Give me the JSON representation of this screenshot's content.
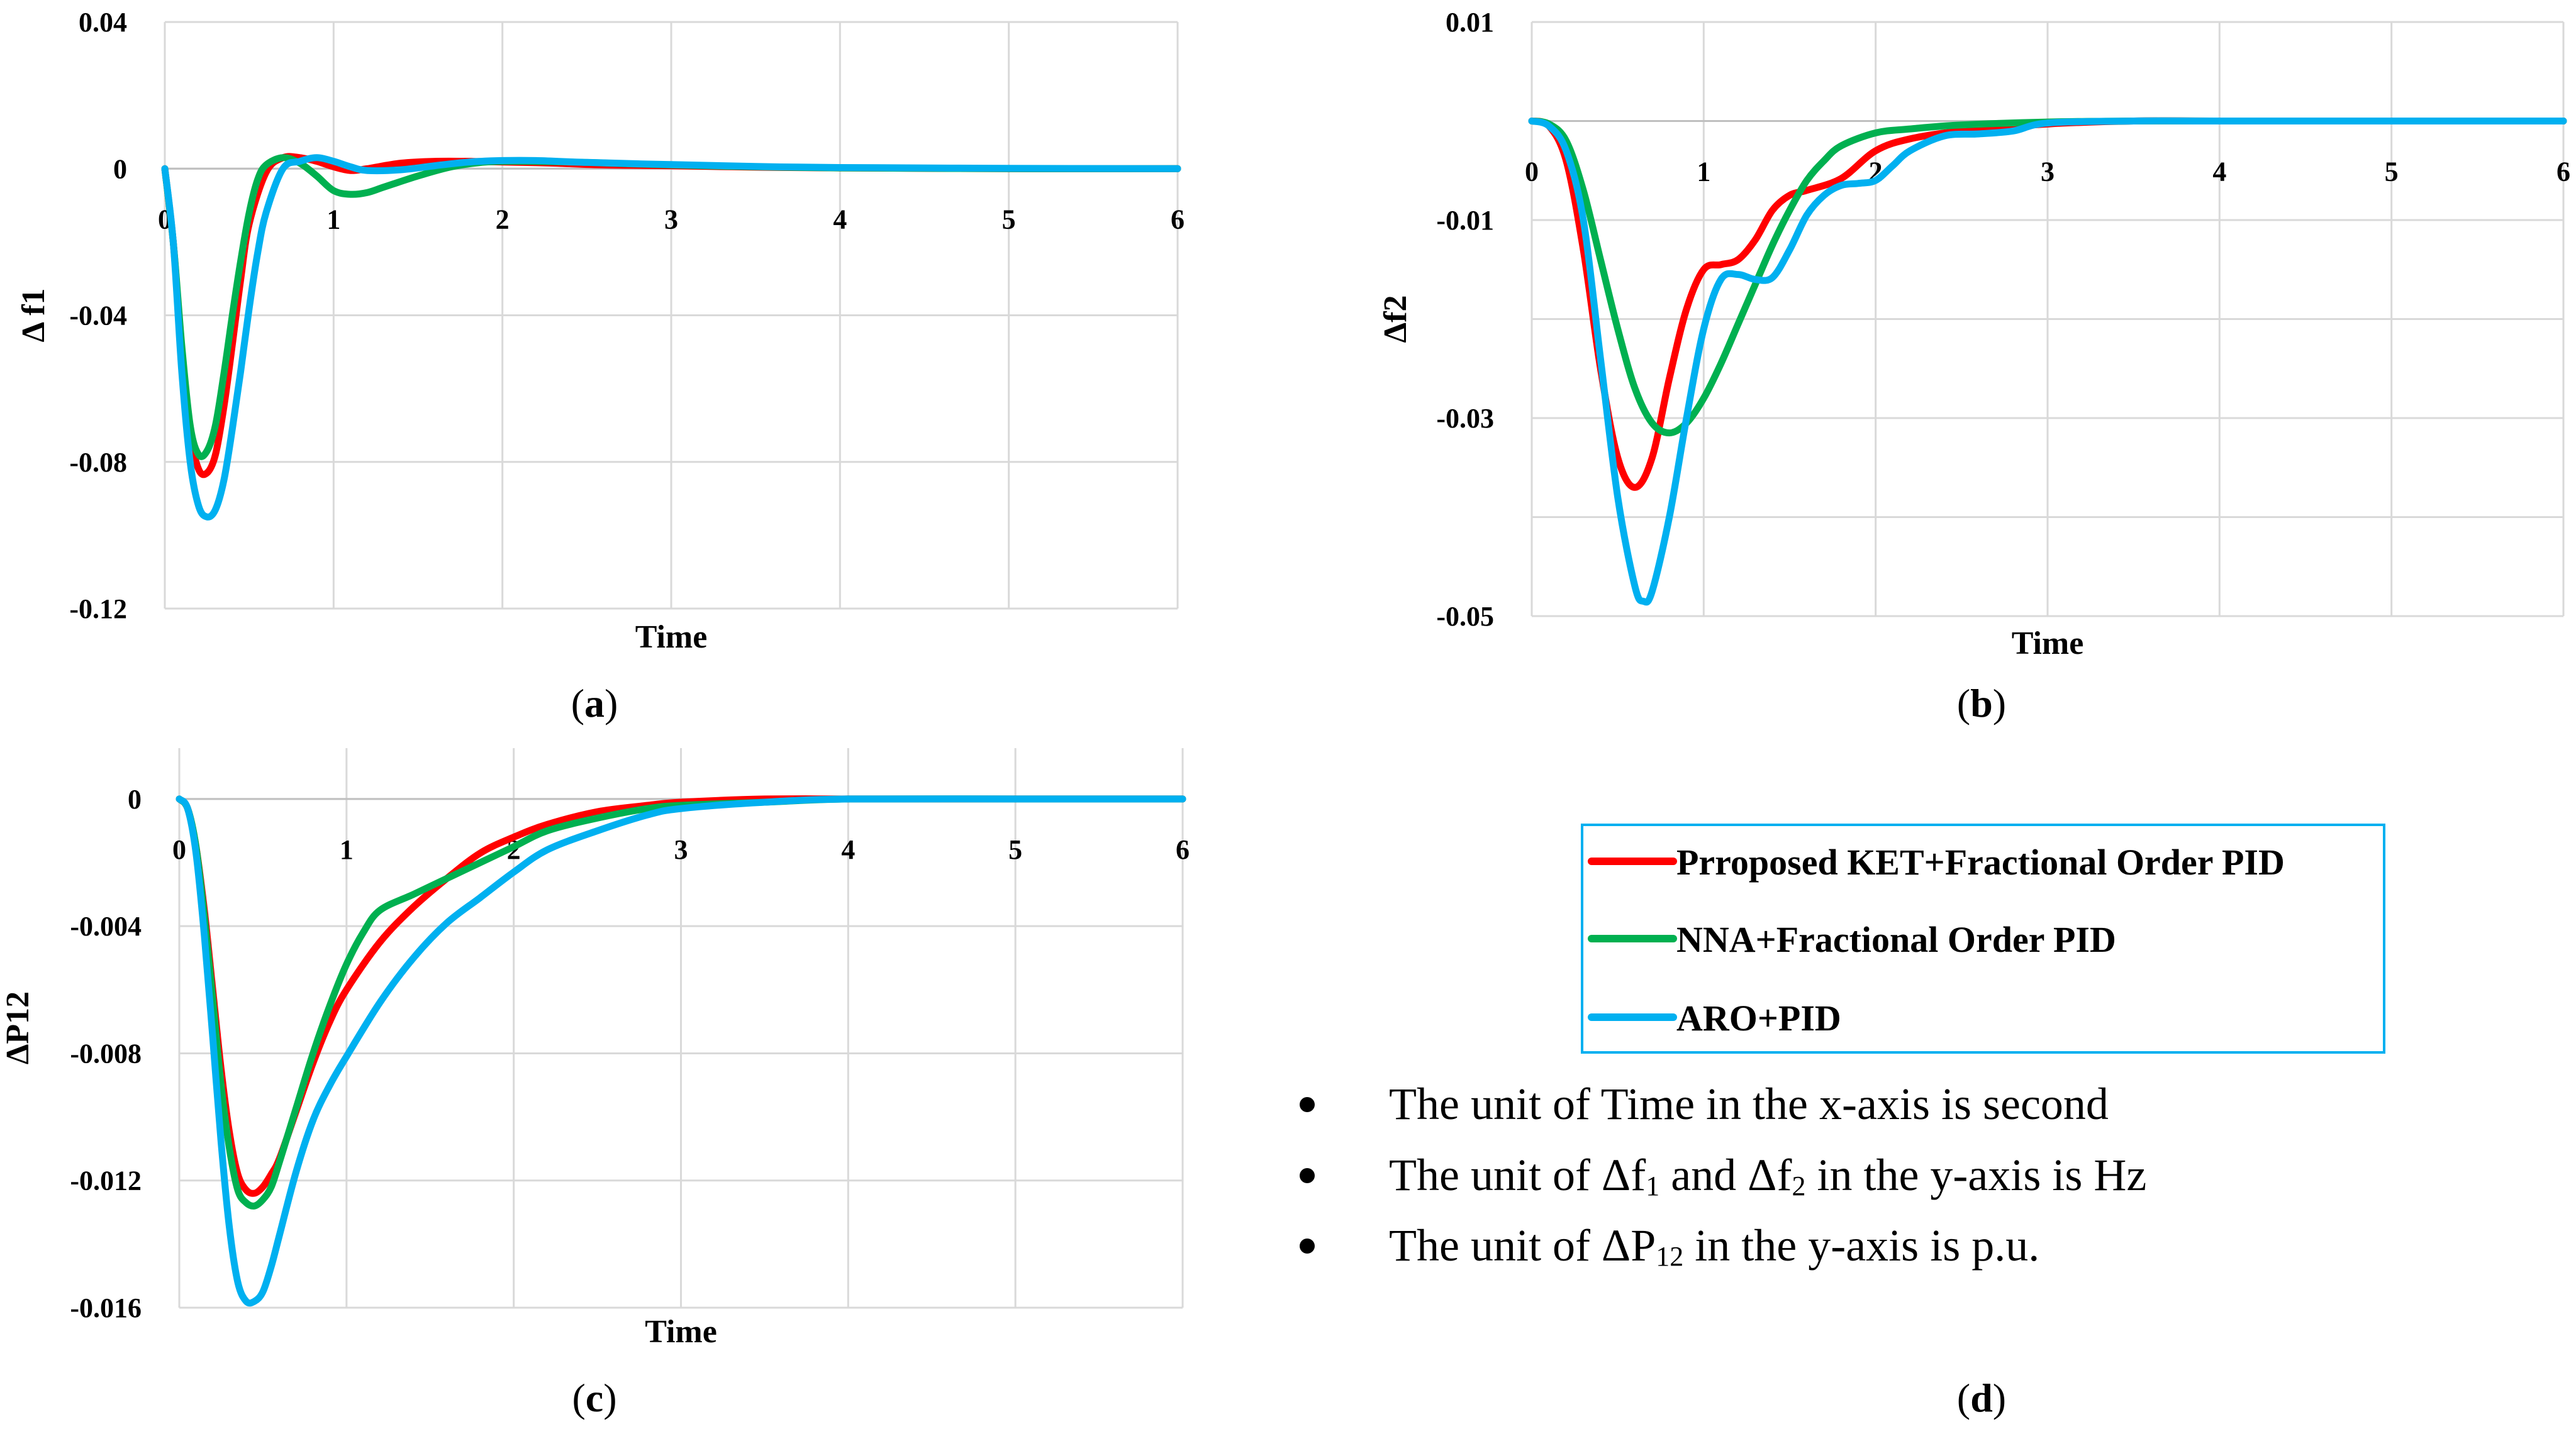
{
  "chart_data": [
    {
      "type": "line",
      "panel": "a",
      "xlabel": "Time",
      "ylabel": "Δ f1",
      "xlim": [
        0,
        6
      ],
      "ylim": [
        -0.12,
        0.04
      ],
      "xticks": [
        "0",
        "1",
        "2",
        "3",
        "4",
        "5",
        "6"
      ],
      "yticks": [
        "0.04",
        "0",
        "-0.04",
        "-0.08",
        "-0.12"
      ],
      "series": [
        {
          "name": "Prroposed KET+Fractional Order PID",
          "color": "#ff0000",
          "x": [
            0,
            0.05,
            0.1,
            0.15,
            0.2,
            0.25,
            0.3,
            0.35,
            0.4,
            0.45,
            0.5,
            0.6,
            0.7,
            0.8,
            0.9,
            1.0,
            1.1,
            1.2,
            1.4,
            1.6,
            1.8,
            2.0,
            2.3,
            2.6,
            3.0,
            3.5,
            4.0,
            5.0,
            6.0
          ],
          "y": [
            0,
            -0.02,
            -0.05,
            -0.072,
            -0.082,
            -0.083,
            -0.078,
            -0.065,
            -0.048,
            -0.03,
            -0.015,
            -0.001,
            0.003,
            0.003,
            0.002,
            0.0005,
            -0.0005,
            0,
            0.0015,
            0.002,
            0.002,
            0.0018,
            0.0015,
            0.001,
            0.0008,
            0.0004,
            0.0002,
            0,
            0
          ]
        },
        {
          "name": "NNA+Fractional Order PID",
          "color": "#00b050",
          "x": [
            0,
            0.05,
            0.1,
            0.15,
            0.2,
            0.25,
            0.3,
            0.35,
            0.4,
            0.45,
            0.5,
            0.55,
            0.6,
            0.7,
            0.8,
            0.9,
            1.0,
            1.1,
            1.2,
            1.3,
            1.5,
            1.7,
            1.9,
            2.1,
            2.4,
            2.7,
            3.0,
            3.5,
            4.0,
            5.0,
            6.0
          ],
          "y": [
            0,
            -0.02,
            -0.048,
            -0.07,
            -0.078,
            -0.077,
            -0.07,
            -0.056,
            -0.04,
            -0.025,
            -0.012,
            -0.003,
            0.001,
            0.003,
            0.0015,
            -0.002,
            -0.006,
            -0.007,
            -0.0065,
            -0.005,
            -0.002,
            0.0005,
            0.0018,
            0.002,
            0.0018,
            0.0014,
            0.001,
            0.0005,
            0.0002,
            0,
            0
          ]
        },
        {
          "name": "ARO+PID",
          "color": "#00b0f0",
          "x": [
            0,
            0.05,
            0.1,
            0.15,
            0.2,
            0.25,
            0.3,
            0.35,
            0.4,
            0.45,
            0.5,
            0.55,
            0.6,
            0.7,
            0.8,
            0.9,
            1.0,
            1.1,
            1.2,
            1.4,
            1.6,
            1.8,
            2.0,
            2.2,
            2.5,
            3.0,
            3.5,
            4.0,
            5.0,
            6.0
          ],
          "y": [
            0,
            -0.02,
            -0.055,
            -0.08,
            -0.092,
            -0.095,
            -0.093,
            -0.085,
            -0.071,
            -0.055,
            -0.038,
            -0.023,
            -0.012,
            0,
            0.002,
            0.003,
            0.002,
            0.0005,
            -0.0005,
            -0.0003,
            0.0008,
            0.0018,
            0.0022,
            0.0022,
            0.0017,
            0.0011,
            0.0006,
            0.0003,
            0.0001,
            0
          ]
        }
      ]
    },
    {
      "type": "line",
      "panel": "b",
      "xlabel": "Time",
      "ylabel": "Δf2",
      "xlim": [
        0,
        6
      ],
      "ylim": [
        -0.05,
        0.01
      ],
      "xticks": [
        "0",
        "1",
        "2",
        "3",
        "4",
        "5",
        "6"
      ],
      "yticks": [
        "0.01",
        "-0.01",
        "-0.03",
        "-0.05"
      ],
      "series": [
        {
          "name": "Prroposed KET+Fractional Order PID",
          "color": "#ff0000",
          "x": [
            0,
            0.1,
            0.2,
            0.3,
            0.4,
            0.5,
            0.6,
            0.7,
            0.8,
            0.9,
            1.0,
            1.1,
            1.2,
            1.3,
            1.4,
            1.5,
            1.6,
            1.8,
            2.0,
            2.2,
            2.5,
            3.0,
            3.5,
            4.0,
            5.0,
            6.0
          ],
          "y": [
            0,
            -0.0005,
            -0.004,
            -0.013,
            -0.025,
            -0.034,
            -0.037,
            -0.034,
            -0.026,
            -0.019,
            -0.015,
            -0.0145,
            -0.014,
            -0.012,
            -0.009,
            -0.0075,
            -0.007,
            -0.0058,
            -0.003,
            -0.0018,
            -0.001,
            -0.0003,
            0,
            0,
            0,
            0
          ]
        },
        {
          "name": "NNA+Fractional Order PID",
          "color": "#00b050",
          "x": [
            0,
            0.1,
            0.2,
            0.3,
            0.4,
            0.5,
            0.6,
            0.7,
            0.8,
            0.9,
            1.0,
            1.1,
            1.2,
            1.3,
            1.4,
            1.5,
            1.6,
            1.7,
            1.8,
            2.0,
            2.2,
            2.5,
            3.0,
            3.5,
            4.0,
            5.0,
            6.0
          ],
          "y": [
            0,
            -0.0003,
            -0.002,
            -0.007,
            -0.014,
            -0.021,
            -0.027,
            -0.0305,
            -0.0315,
            -0.0305,
            -0.028,
            -0.0245,
            -0.0205,
            -0.0165,
            -0.0125,
            -0.009,
            -0.006,
            -0.004,
            -0.0025,
            -0.0012,
            -0.0008,
            -0.0004,
            -0.0001,
            0,
            0,
            0,
            0
          ]
        },
        {
          "name": "ARO+PID",
          "color": "#00b0f0",
          "x": [
            0,
            0.1,
            0.2,
            0.3,
            0.4,
            0.5,
            0.6,
            0.65,
            0.7,
            0.8,
            0.9,
            1.0,
            1.1,
            1.2,
            1.3,
            1.4,
            1.5,
            1.6,
            1.7,
            1.8,
            1.9,
            2.0,
            2.1,
            2.2,
            2.4,
            2.6,
            2.8,
            3.0,
            3.5,
            4.0,
            5.0,
            6.0
          ],
          "y": [
            0,
            -0.0005,
            -0.003,
            -0.01,
            -0.024,
            -0.038,
            -0.047,
            -0.0485,
            -0.0475,
            -0.04,
            -0.03,
            -0.021,
            -0.016,
            -0.0155,
            -0.016,
            -0.0158,
            -0.013,
            -0.0095,
            -0.0075,
            -0.0065,
            -0.0063,
            -0.006,
            -0.0045,
            -0.003,
            -0.0015,
            -0.0013,
            -0.001,
            -0.0002,
            0,
            0,
            0,
            0
          ]
        }
      ]
    },
    {
      "type": "line",
      "panel": "c",
      "xlabel": "Time",
      "ylabel": "ΔP12",
      "xlim": [
        0,
        6
      ],
      "ylim": [
        -0.016,
        0.0016
      ],
      "xticks": [
        "0",
        "1",
        "2",
        "3",
        "4",
        "5",
        "6"
      ],
      "yticks": [
        "0",
        "-0.004",
        "-0.008",
        "-0.012",
        "-0.016"
      ],
      "ytick_values": [
        0,
        -0.004,
        -0.008,
        -0.012,
        -0.016
      ],
      "series": [
        {
          "name": "Prroposed KET+Fractional Order PID",
          "color": "#ff0000",
          "x": [
            0,
            0.05,
            0.1,
            0.15,
            0.2,
            0.25,
            0.3,
            0.35,
            0.4,
            0.45,
            0.5,
            0.55,
            0.6,
            0.7,
            0.8,
            0.9,
            1.0,
            1.2,
            1.4,
            1.6,
            1.8,
            2.0,
            2.2,
            2.5,
            2.8,
            3.0,
            3.5,
            4.0,
            5.0,
            6.0
          ],
          "y": [
            0,
            -0.0003,
            -0.0015,
            -0.0035,
            -0.006,
            -0.0085,
            -0.0105,
            -0.0118,
            -0.0123,
            -0.0124,
            -0.0122,
            -0.0118,
            -0.0113,
            -0.0098,
            -0.0083,
            -0.007,
            -0.006,
            -0.0045,
            -0.0034,
            -0.0025,
            -0.0017,
            -0.0012,
            -0.0008,
            -0.0004,
            -0.0002,
            -0.0001,
            0,
            0,
            0,
            0
          ]
        },
        {
          "name": "NNA+Fractional Order PID",
          "color": "#00b050",
          "x": [
            0,
            0.05,
            0.1,
            0.15,
            0.2,
            0.25,
            0.3,
            0.35,
            0.4,
            0.45,
            0.5,
            0.55,
            0.6,
            0.7,
            0.8,
            0.9,
            1.0,
            1.1,
            1.2,
            1.4,
            1.6,
            1.8,
            2.0,
            2.2,
            2.5,
            2.8,
            3.0,
            3.5,
            4.0,
            5.0,
            6.0
          ],
          "y": [
            0,
            -0.0003,
            -0.0015,
            -0.0037,
            -0.0063,
            -0.009,
            -0.011,
            -0.0123,
            -0.0127,
            -0.0128,
            -0.0126,
            -0.0122,
            -0.0114,
            -0.0097,
            -0.008,
            -0.0065,
            -0.0052,
            -0.0042,
            -0.0035,
            -0.003,
            -0.0025,
            -0.002,
            -0.0015,
            -0.001,
            -0.0006,
            -0.0003,
            -0.0002,
            -0.0001,
            0,
            0,
            0
          ]
        },
        {
          "name": "ARO+PID",
          "color": "#00b0f0",
          "x": [
            0,
            0.05,
            0.1,
            0.15,
            0.2,
            0.25,
            0.3,
            0.35,
            0.4,
            0.45,
            0.5,
            0.55,
            0.6,
            0.7,
            0.8,
            0.9,
            1.0,
            1.2,
            1.4,
            1.6,
            1.8,
            2.0,
            2.2,
            2.5,
            2.8,
            3.0,
            3.5,
            4.0,
            5.0,
            6.0
          ],
          "y": [
            0,
            -0.0003,
            -0.0017,
            -0.0043,
            -0.0075,
            -0.0108,
            -0.0135,
            -0.0152,
            -0.0158,
            -0.0158,
            -0.0155,
            -0.0147,
            -0.0137,
            -0.0117,
            -0.0101,
            -0.009,
            -0.0081,
            -0.0064,
            -0.005,
            -0.0039,
            -0.0031,
            -0.0023,
            -0.0016,
            -0.001,
            -0.0005,
            -0.0003,
            -0.0001,
            0,
            0,
            0
          ]
        }
      ]
    }
  ],
  "captions": {
    "a": "a",
    "b": "b",
    "c": "c",
    "d": "d"
  },
  "legend": [
    {
      "label": "Prroposed KET+Fractional Order PID",
      "color": "#ff0000"
    },
    {
      "label": "NNA+Fractional Order PID",
      "color": "#00b050"
    },
    {
      "label": "ARO+PID",
      "color": "#00b0f0"
    }
  ],
  "legend_border_color": "#00b0f0",
  "notes": {
    "n1": "The unit of Time in the x-axis is second",
    "n2_a": "The unit of Δf",
    "n2_sub1": "1",
    "n2_b": " and Δf",
    "n2_sub2": "2",
    "n2_c": " in the y-axis is Hz",
    "n3_a": "The unit of ΔP",
    "n3_sub": "12",
    "n3_b": " in the y-axis is p.u."
  }
}
